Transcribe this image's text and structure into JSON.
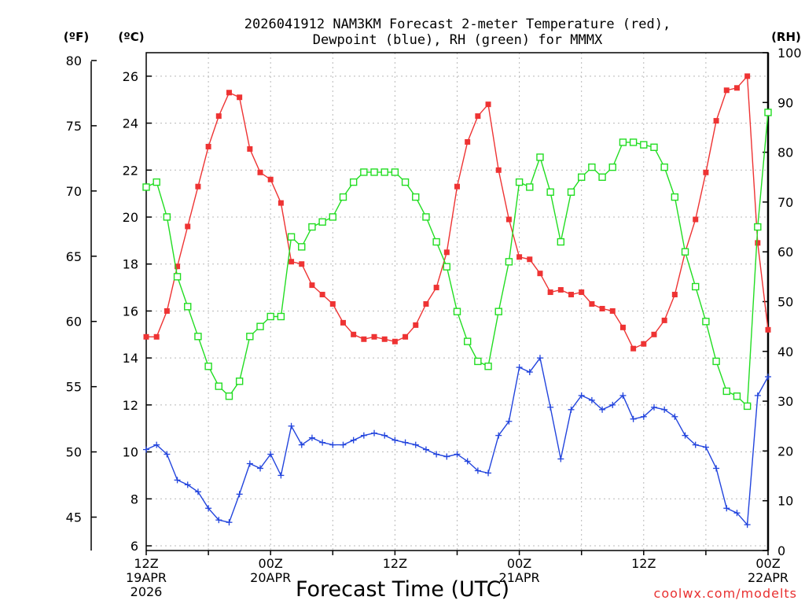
{
  "chart_data": {
    "type": "line",
    "title": "2026041912 NAM3KM Forecast 2-meter Temperature (red), Dewpoint (blue), RH (green) for MMMX",
    "title_lines": [
      "2026041912 NAM3KM Forecast 2-meter Temperature (red),",
      "Dewpoint (blue), RH (green) for MMMX"
    ],
    "xlabel": "Forecast Time (UTC)",
    "credit": "coolwx.com/modelts",
    "axis_titles": {
      "left_f": "(ºF)",
      "left_c": "(ºC)",
      "right_rh": "(RH)"
    },
    "x_forecast_hours": [
      0,
      1,
      2,
      3,
      4,
      5,
      6,
      7,
      8,
      9,
      10,
      11,
      12,
      13,
      14,
      15,
      16,
      17,
      18,
      19,
      20,
      21,
      22,
      23,
      24,
      25,
      26,
      27,
      28,
      29,
      30,
      31,
      32,
      33,
      34,
      35,
      36,
      37,
      38,
      39,
      40,
      41,
      42,
      43,
      44,
      45,
      46,
      47,
      48,
      49,
      50,
      51,
      52,
      53,
      54,
      55,
      56,
      57,
      58,
      59,
      60
    ],
    "xlim": [
      0,
      60
    ],
    "x_ticks": [
      {
        "hour": 0,
        "lines": [
          "12Z",
          "19APR",
          "2026"
        ]
      },
      {
        "hour": 12,
        "lines": [
          "00Z",
          "20APR"
        ]
      },
      {
        "hour": 24,
        "lines": [
          "12Z"
        ]
      },
      {
        "hour": 36,
        "lines": [
          "00Z",
          "21APR"
        ]
      },
      {
        "hour": 48,
        "lines": [
          "12Z"
        ]
      },
      {
        "hour": 60,
        "lines": [
          "00Z",
          "22APR"
        ]
      }
    ],
    "y_celsius": {
      "ylim": [
        5.8,
        27.0
      ],
      "ticks": [
        6,
        8,
        10,
        12,
        14,
        16,
        18,
        20,
        22,
        24,
        26
      ]
    },
    "y_fahrenheit": {
      "ticks": [
        45,
        50,
        55,
        60,
        65,
        70,
        75,
        80
      ]
    },
    "y_rh": {
      "ylim": [
        0,
        100
      ],
      "ticks": [
        0,
        10,
        20,
        30,
        40,
        50,
        60,
        70,
        80,
        90,
        100
      ]
    },
    "series": [
      {
        "name": "Temperature",
        "units": "C",
        "color": "#ee3333",
        "marker": "filled-square",
        "values": [
          14.9,
          14.9,
          16.0,
          17.9,
          19.6,
          21.3,
          23.0,
          24.3,
          25.3,
          25.1,
          22.9,
          21.9,
          21.6,
          20.6,
          18.1,
          18.0,
          17.1,
          16.7,
          16.3,
          15.5,
          15.0,
          14.8,
          14.9,
          14.8,
          14.7,
          14.9,
          15.4,
          16.3,
          17.0,
          18.5,
          21.3,
          23.2,
          24.3,
          24.8,
          22.0,
          19.9,
          18.3,
          18.2,
          17.6,
          16.8,
          16.9,
          16.7,
          16.8,
          16.3,
          16.1,
          16.0,
          15.3,
          14.4,
          14.6,
          15.0,
          15.6,
          16.7,
          18.5,
          19.9,
          21.9,
          24.1,
          25.4,
          25.5,
          26.0,
          18.9,
          15.2
        ]
      },
      {
        "name": "Dewpoint",
        "units": "C",
        "color": "#2244dd",
        "marker": "plus",
        "values": [
          10.1,
          10.3,
          9.9,
          8.8,
          8.6,
          8.3,
          7.6,
          7.1,
          7.0,
          8.2,
          9.5,
          9.3,
          9.9,
          9.0,
          11.1,
          10.3,
          10.6,
          10.4,
          10.3,
          10.3,
          10.5,
          10.7,
          10.8,
          10.7,
          10.5,
          10.4,
          10.3,
          10.1,
          9.9,
          9.8,
          9.9,
          9.6,
          9.2,
          9.1,
          10.7,
          11.3,
          13.6,
          13.4,
          14.0,
          11.9,
          9.7,
          11.8,
          12.4,
          12.2,
          11.8,
          12.0,
          12.4,
          11.4,
          11.5,
          11.9,
          11.8,
          11.5,
          10.7,
          10.3,
          10.2,
          9.3,
          7.6,
          7.4,
          6.9,
          12.4,
          13.2
        ]
      },
      {
        "name": "RH",
        "units": "%",
        "color": "#22dd22",
        "marker": "open-square",
        "values": [
          73,
          74,
          67,
          55,
          49,
          43,
          37,
          33,
          31,
          34,
          43,
          45,
          47,
          47,
          63,
          61,
          65,
          66,
          67,
          71,
          74,
          76,
          76,
          76,
          76,
          74,
          71,
          67,
          62,
          57,
          48,
          42,
          38,
          37,
          48,
          58,
          74,
          73,
          79,
          72,
          62,
          72,
          75,
          77,
          75,
          77,
          82,
          82,
          81.5,
          81,
          77,
          71,
          60,
          53,
          46,
          38,
          32,
          31,
          29,
          65,
          88
        ]
      }
    ]
  }
}
